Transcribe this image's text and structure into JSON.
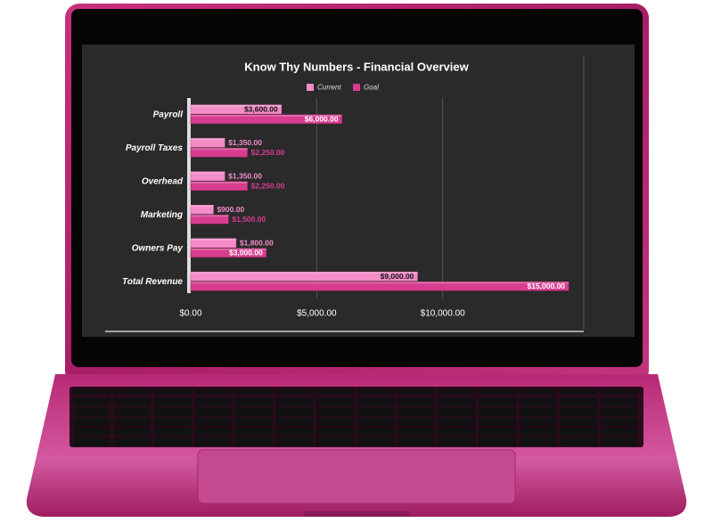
{
  "chart_data": {
    "type": "hbar",
    "title": "Know Thy Numbers - Financial Overview",
    "categories": [
      "Payroll",
      "Payroll Taxes",
      "Overhead",
      "Marketing",
      "Owners Pay",
      "Total Revenue"
    ],
    "series": [
      {
        "name": "Current",
        "color": "#f48cc8",
        "values": [
          3600,
          1350,
          1350,
          900,
          1800,
          9000
        ],
        "value_labels": [
          "$3,600.00",
          "$1,350.00",
          "$1,350.00",
          "$900.00",
          "$1,800.00",
          "$9,000.00"
        ]
      },
      {
        "name": "Goal",
        "color": "#d63d8f",
        "values": [
          6000,
          2250,
          2250,
          1500,
          3000,
          15000
        ],
        "value_labels": [
          "$6,000.00",
          "$2,250.00",
          "$2,250.00",
          "$1,500.00",
          "$3,000.00",
          "$15,000.00"
        ]
      }
    ],
    "xlim": [
      0,
      15600
    ],
    "xticks": [
      {
        "value": 0,
        "label": "$0.00"
      },
      {
        "value": 5000,
        "label": "$5,000.00"
      },
      {
        "value": 10000,
        "label": "$10,000.00"
      }
    ],
    "grid": true,
    "legend": "top"
  }
}
